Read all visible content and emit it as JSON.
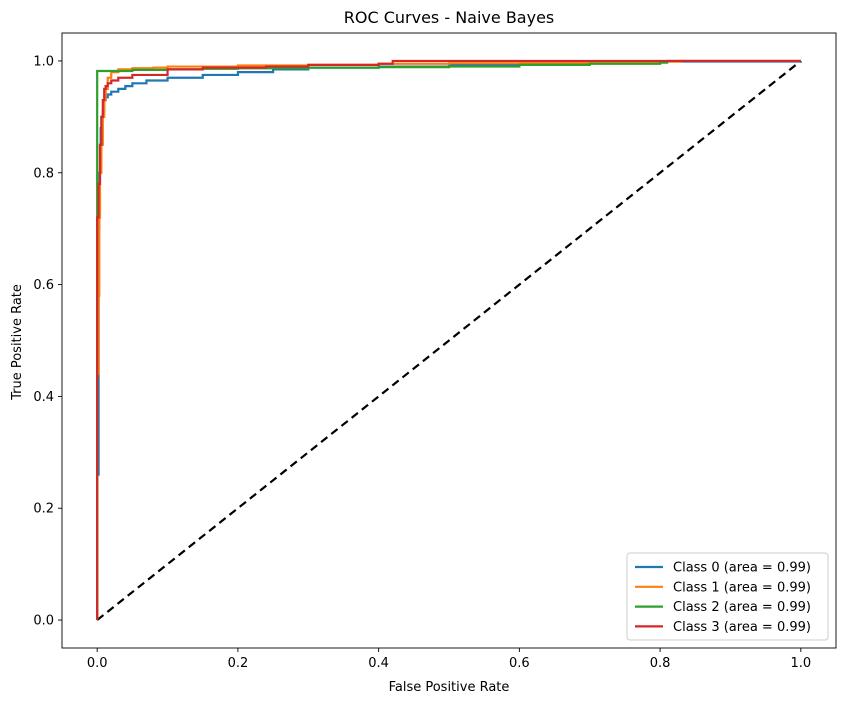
{
  "chart_data": {
    "type": "line",
    "title": "ROC Curves - Naive Bayes",
    "xlabel": "False Positive Rate",
    "ylabel": "True Positive Rate",
    "xlim": [
      -0.05,
      1.05
    ],
    "ylim": [
      -0.05,
      1.05
    ],
    "xticks": [
      "0.0",
      "0.2",
      "0.4",
      "0.6",
      "0.8",
      "1.0"
    ],
    "yticks": [
      "0.0",
      "0.2",
      "0.4",
      "0.6",
      "0.8",
      "1.0"
    ],
    "xtick_values": [
      0,
      0.2,
      0.4,
      0.6,
      0.8,
      1.0
    ],
    "ytick_values": [
      0,
      0.2,
      0.4,
      0.6,
      0.8,
      1.0
    ],
    "grid": false,
    "legend_position": "lower-right",
    "series": [
      {
        "name": "Class 0 (area = 0.99)",
        "color": "#1f77b4",
        "x": [
          0,
          0,
          0.002,
          0.003,
          0.004,
          0.005,
          0.006,
          0.008,
          0.01,
          0.012,
          0.015,
          0.02,
          0.03,
          0.04,
          0.05,
          0.07,
          0.1,
          0.15,
          0.2,
          0.25,
          0.3,
          0.4,
          0.5,
          0.6,
          0.7,
          0.8,
          1.0
        ],
        "y": [
          0,
          0.26,
          0.7,
          0.8,
          0.85,
          0.88,
          0.9,
          0.91,
          0.93,
          0.935,
          0.94,
          0.945,
          0.95,
          0.955,
          0.96,
          0.965,
          0.97,
          0.975,
          0.98,
          0.985,
          0.988,
          0.99,
          0.993,
          0.995,
          0.997,
          0.999,
          1.0
        ]
      },
      {
        "name": "Class 1 (area = 0.99)",
        "color": "#ff7f0e",
        "x": [
          0,
          0,
          0.002,
          0.003,
          0.004,
          0.006,
          0.008,
          0.01,
          0.012,
          0.015,
          0.02,
          0.03,
          0.05,
          0.08,
          0.1,
          0.15,
          0.2,
          0.3,
          0.4,
          0.5,
          0.6,
          0.7,
          0.8,
          0.83,
          1.0
        ],
        "y": [
          0,
          0.44,
          0.58,
          0.72,
          0.8,
          0.85,
          0.9,
          0.93,
          0.95,
          0.97,
          0.98,
          0.985,
          0.987,
          0.988,
          0.99,
          0.99,
          0.992,
          0.993,
          0.995,
          0.996,
          0.997,
          0.998,
          0.999,
          1.0,
          1.0
        ]
      },
      {
        "name": "Class 2 (area = 0.99)",
        "color": "#2ca02c",
        "x": [
          0,
          0,
          0,
          0.02,
          0.05,
          0.1,
          0.15,
          0.2,
          0.3,
          0.4,
          0.5,
          0.6,
          0.7,
          0.8,
          0.81,
          1.0
        ],
        "y": [
          0,
          0.8,
          0.982,
          0.982,
          0.984,
          0.985,
          0.986,
          0.987,
          0.988,
          0.989,
          0.99,
          0.993,
          0.995,
          0.997,
          1.0,
          1.0
        ]
      },
      {
        "name": "Class 3 (area = 0.99)",
        "color": "#d62728",
        "x": [
          0,
          0,
          0.002,
          0.004,
          0.006,
          0.008,
          0.01,
          0.012,
          0.015,
          0.02,
          0.03,
          0.05,
          0.1,
          0.15,
          0.24,
          0.3,
          0.4,
          0.42,
          0.6,
          0.8,
          1.0
        ],
        "y": [
          0,
          0.72,
          0.78,
          0.85,
          0.9,
          0.93,
          0.95,
          0.955,
          0.96,
          0.965,
          0.97,
          0.975,
          0.985,
          0.988,
          0.99,
          0.993,
          0.995,
          1.0,
          1.0,
          1.0,
          1.0
        ]
      }
    ],
    "reference_line": {
      "x": [
        0,
        1
      ],
      "y": [
        0,
        1
      ],
      "color": "#000000",
      "style": "dashed"
    }
  }
}
